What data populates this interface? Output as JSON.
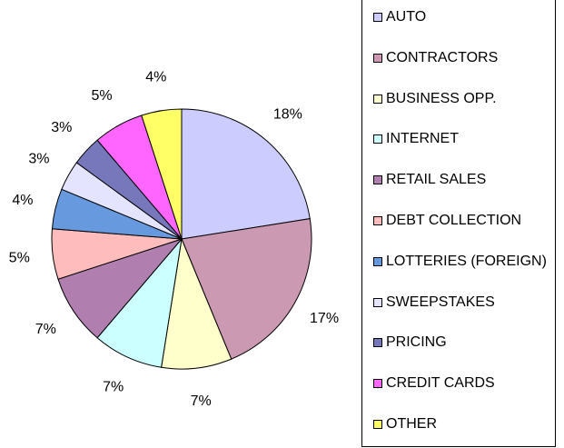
{
  "chart_data": {
    "type": "pie",
    "categories": [
      "AUTO",
      "CONTRACTORS",
      "BUSINESS OPP.",
      "INTERNET",
      "RETAIL SALES",
      "DEBT COLLECTION",
      "LOTTERIES (FOREIGN)",
      "SWEEPSTAKES",
      "PRICING",
      "CREDIT CARDS",
      "OTHER"
    ],
    "values": [
      18,
      17,
      7,
      7,
      7,
      5,
      4,
      3,
      3,
      5,
      4
    ],
    "value_labels": [
      "18%",
      "17%",
      "7%",
      "7%",
      "7%",
      "5%",
      "4%",
      "3%",
      "3%",
      "5%",
      "4%"
    ],
    "colors": [
      "#ccccff",
      "#cc99b3",
      "#ffffcc",
      "#ccffff",
      "#b07fb0",
      "#ffbcbc",
      "#6699dd",
      "#e4e4ff",
      "#7777bb",
      "#ff66ff",
      "#ffff66"
    ],
    "legend": "right"
  }
}
